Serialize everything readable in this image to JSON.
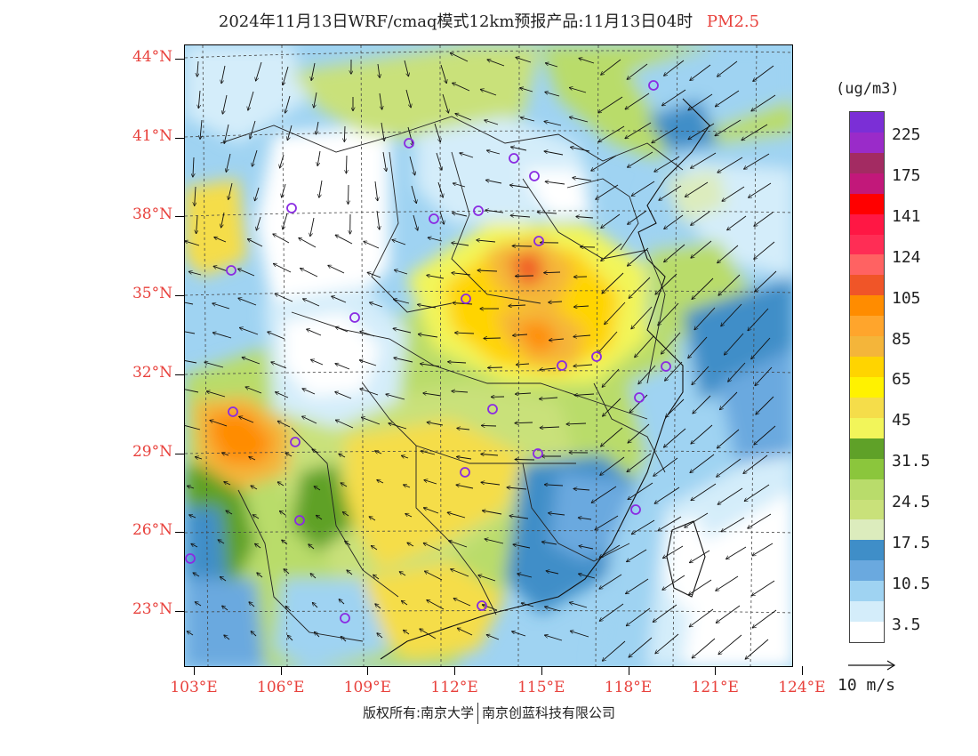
{
  "title": {
    "main": "2024年11月13日WRF/cmaq模式12km预报产品:11月13日04时",
    "variable": "PM2.5"
  },
  "map": {
    "lat_labels": [
      "44°N",
      "41°N",
      "38°N",
      "35°N",
      "32°N",
      "29°N",
      "26°N",
      "23°N"
    ],
    "lon_labels": [
      "103°E",
      "106°E",
      "109°E",
      "112°E",
      "115°E",
      "118°E",
      "121°E",
      "124°E"
    ]
  },
  "legend": {
    "unit": "(ug/m3)",
    "labels": [
      "225",
      "175",
      "141",
      "124",
      "105",
      "85",
      "65",
      "45",
      "31.5",
      "24.5",
      "17.5",
      "10.5",
      "3.5"
    ],
    "colors": [
      "#7b2fd6",
      "#9a2bc9",
      "#a32b62",
      "#c2187a",
      "#ff0000",
      "#ff1744",
      "#ff2d55",
      "#ff6262",
      "#f05528",
      "#ff8c00",
      "#ffa52c",
      "#f4b53a",
      "#ffd400",
      "#fff200",
      "#f5dd4a",
      "#f2f55a",
      "#5fa128",
      "#8bc63c",
      "#b9dc6b",
      "#c9e17a",
      "#dcecbd",
      "#3f8ec8",
      "#6aa9df",
      "#9fd3f2",
      "#d4edfa",
      "#ffffff"
    ]
  },
  "wind_scale": {
    "label": "10 m/s"
  },
  "footer": {
    "left": "版权所有:南京大学",
    "right": "南京创蓝科技有限公司"
  }
}
